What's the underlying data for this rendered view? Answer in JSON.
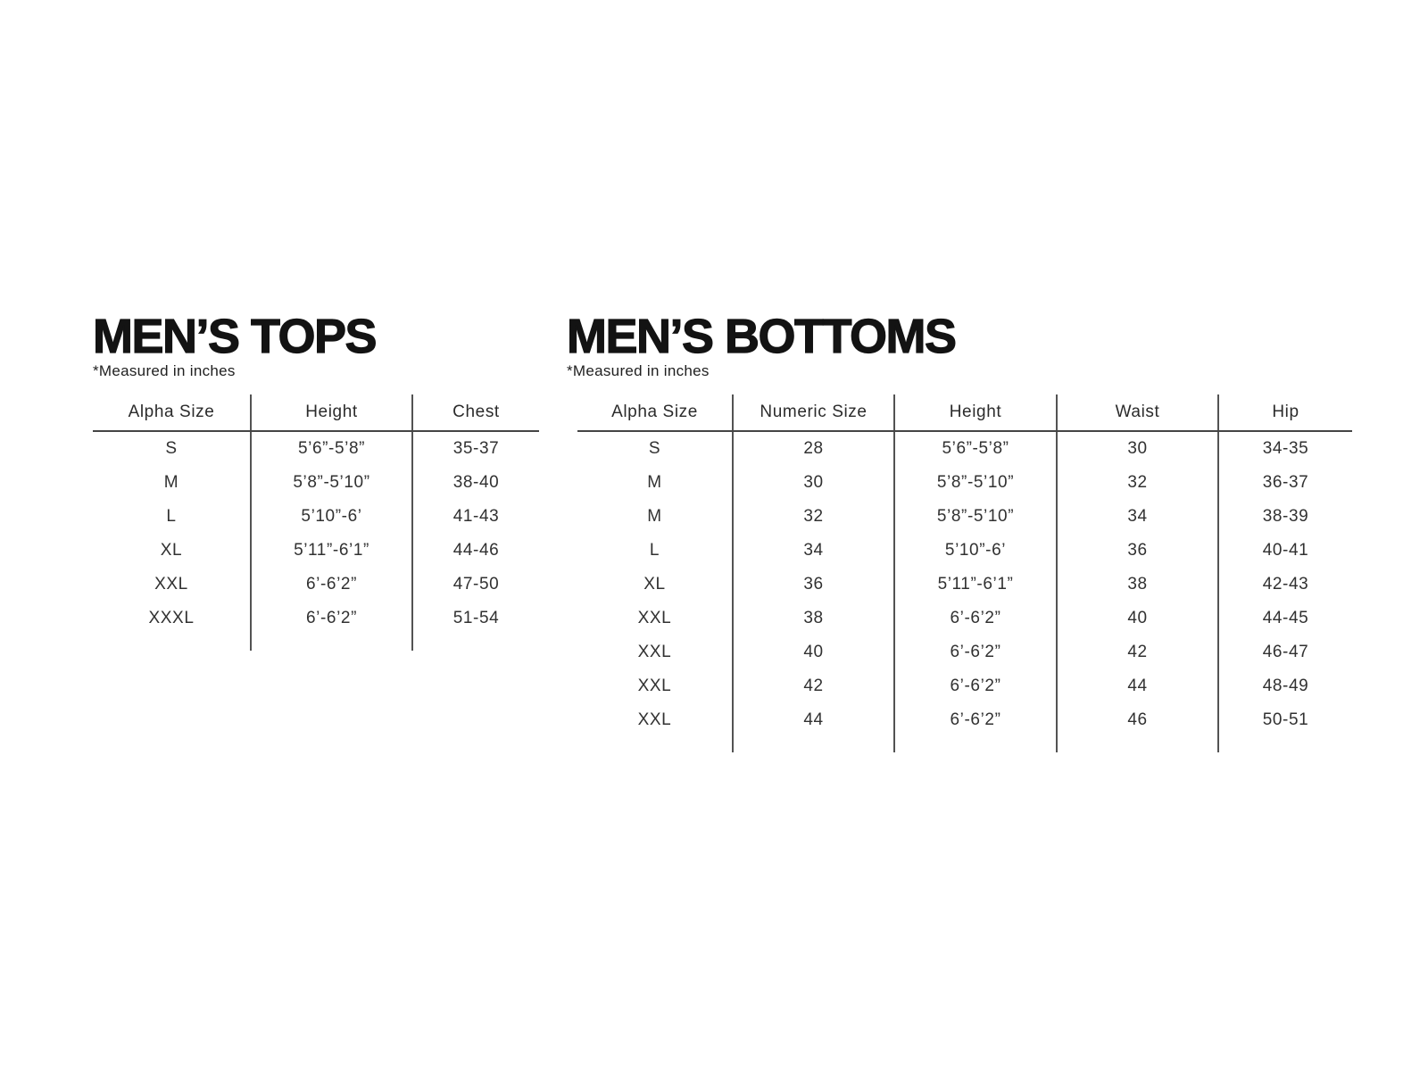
{
  "colors": {
    "background": "#ffffff",
    "title_text": "#131313",
    "body_text": "#313131",
    "rule_line": "#4b4b4b"
  },
  "tops": {
    "title": "MEN’S TOPS",
    "note": "*Measured in inches",
    "columns": [
      "Alpha Size",
      "Height",
      "Chest"
    ],
    "rows": [
      [
        "S",
        "5’6”-5’8”",
        "35-37"
      ],
      [
        "M",
        "5’8”-5’10”",
        "38-40"
      ],
      [
        "L",
        "5’10”-6’",
        "41-43"
      ],
      [
        "XL",
        "5’11”-6’1”",
        "44-46"
      ],
      [
        "XXL",
        "6’-6’2”",
        "47-50"
      ],
      [
        "XXXL",
        "6’-6’2”",
        "51-54"
      ]
    ]
  },
  "bottoms": {
    "title": "MEN’S BOTTOMS",
    "note": "*Measured in inches",
    "columns": [
      "Alpha Size",
      "Numeric Size",
      "Height",
      "Waist",
      "Hip"
    ],
    "rows": [
      [
        "S",
        "28",
        "5’6”-5’8”",
        "30",
        "34-35"
      ],
      [
        "M",
        "30",
        "5’8”-5’10”",
        "32",
        "36-37"
      ],
      [
        "M",
        "32",
        "5’8”-5’10”",
        "34",
        "38-39"
      ],
      [
        "L",
        "34",
        "5’10”-6’",
        "36",
        "40-41"
      ],
      [
        "XL",
        "36",
        "5’11”-6’1”",
        "38",
        "42-43"
      ],
      [
        "XXL",
        "38",
        "6’-6’2”",
        "40",
        "44-45"
      ],
      [
        "XXL",
        "40",
        "6’-6’2”",
        "42",
        "46-47"
      ],
      [
        "XXL",
        "42",
        "6’-6’2”",
        "44",
        "48-49"
      ],
      [
        "XXL",
        "44",
        "6’-6’2”",
        "46",
        "50-51"
      ]
    ]
  }
}
